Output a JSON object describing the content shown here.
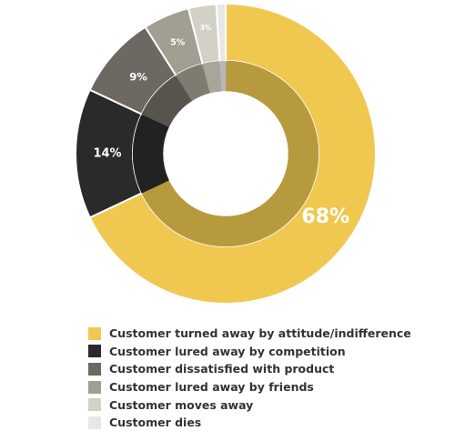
{
  "chart_data": {
    "type": "pie",
    "variant": "donut",
    "unit": "%",
    "slices": [
      {
        "label": "Customer turned away by attitude/indifference",
        "value": 68,
        "value_label": "68%",
        "color": "#f0c850",
        "inner_color": "#b89a3e"
      },
      {
        "label": "Customer lured away by competition",
        "value": 14,
        "value_label": "14%",
        "color": "#2a2a2a",
        "inner_color": "#222222"
      },
      {
        "label": "Customer dissatisfied with product",
        "value": 9,
        "value_label": "9%",
        "color": "#6d6962",
        "inner_color": "#57534d"
      },
      {
        "label": "Customer lured away by friends",
        "value": 5,
        "value_label": "5%",
        "color": "#a29e92",
        "inner_color": "#7f7b71"
      },
      {
        "label": "Customer moves away",
        "value": 3,
        "value_label": "3%",
        "color": "#d3d0c6",
        "inner_color": "#a8a59b"
      },
      {
        "label": "Customer dies",
        "value": 1,
        "value_label": "",
        "color": "#e7e7e7",
        "inner_color": "#b8b8b8"
      }
    ],
    "legend_position": "bottom"
  }
}
